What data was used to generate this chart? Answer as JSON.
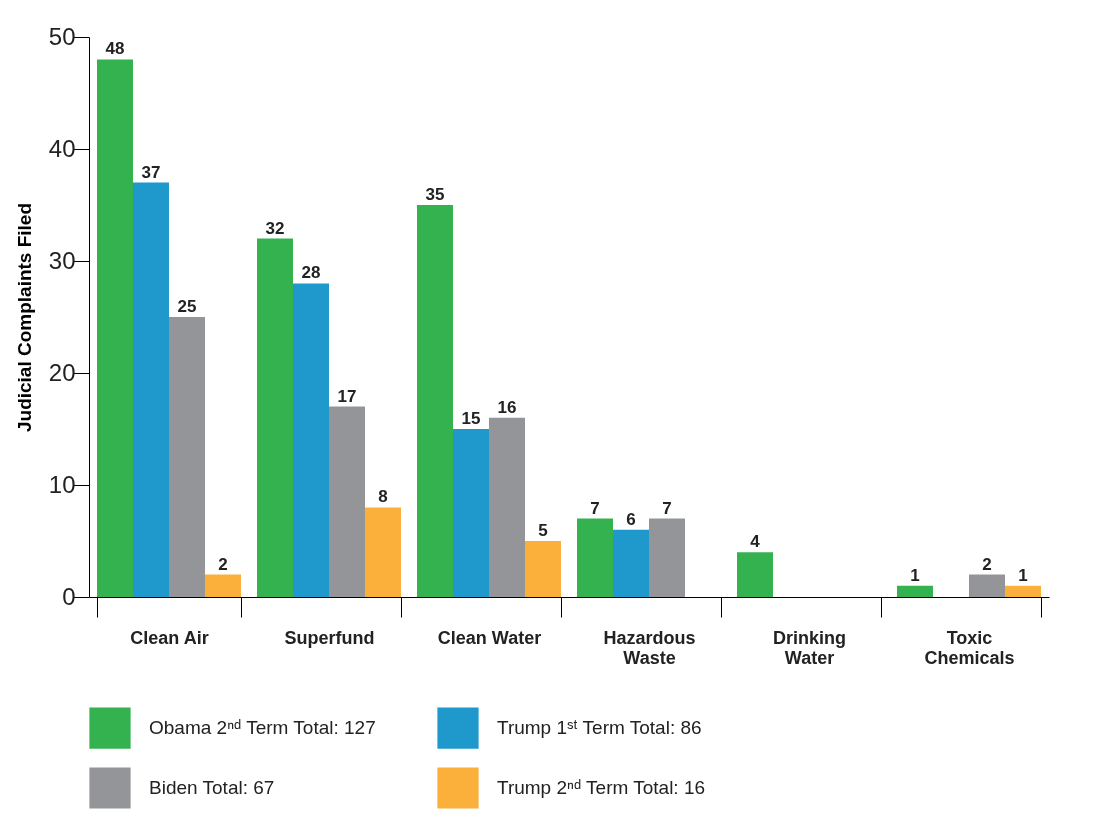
{
  "chart_data": {
    "type": "bar",
    "ylabel": "Judicial Complaints Filed",
    "categories": [
      "Clean Air",
      "Superfund",
      "Clean Water",
      "Hazardous Waste",
      "Drinking Water",
      "Toxic Chemicals"
    ],
    "series": [
      {
        "name": "Obama 2ⁿᵈ Term Total: 127",
        "color": "#33b24f",
        "values": [
          48,
          32,
          35,
          7,
          4,
          1
        ]
      },
      {
        "name": "Trump 1ˢᵗ Term Total: 86",
        "color": "#1f98cb",
        "values": [
          37,
          28,
          15,
          6,
          null,
          null
        ]
      },
      {
        "name": "Biden Total: 67",
        "color": "#939598",
        "values": [
          25,
          17,
          16,
          7,
          null,
          2
        ]
      },
      {
        "name": "Trump 2ⁿᵈ Term Total: 16",
        "color": "#fbb03b",
        "values": [
          2,
          8,
          5,
          null,
          null,
          1
        ]
      }
    ],
    "ylim": [
      0,
      50
    ],
    "yticks": [
      0,
      10,
      20,
      30,
      40,
      50
    ],
    "grid": false,
    "legend": "bottom",
    "data_labels": true
  }
}
